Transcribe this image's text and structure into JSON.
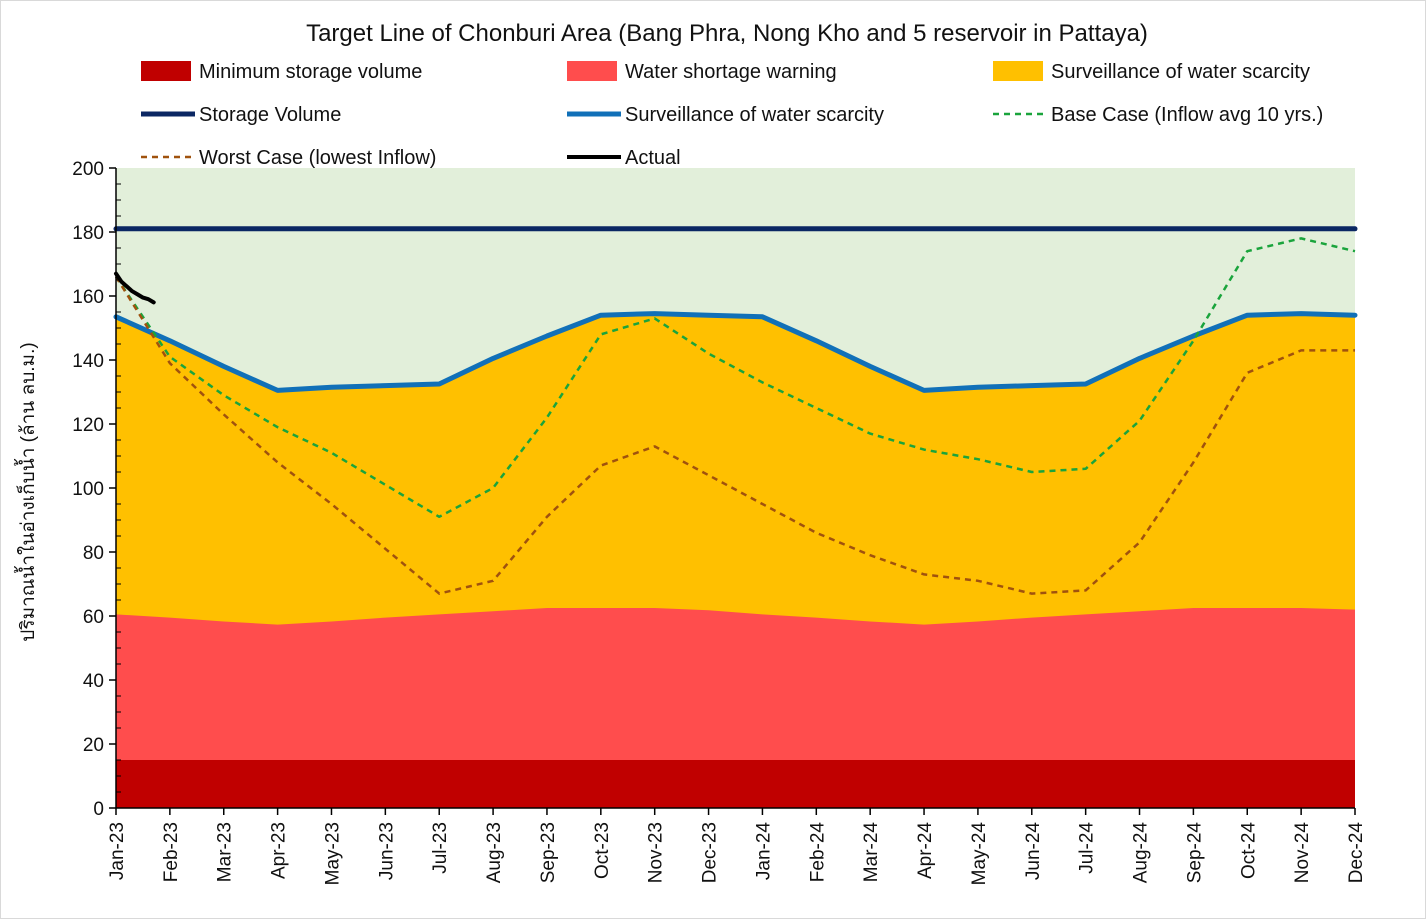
{
  "chart_data": {
    "type": "area",
    "title": "Target Line of Chonburi Area (Bang Phra, Nong Kho and 5 reservoir in Pattaya)",
    "xlabel": "",
    "ylabel": "ปริมาณน้ำในอ่างเก็บน้ำ (ล้าน ลบ.ม.)",
    "ylim": [
      0,
      200
    ],
    "yticks": [
      0,
      20,
      40,
      60,
      80,
      100,
      120,
      140,
      160,
      180,
      200
    ],
    "categories": [
      "Jan-23",
      "Feb-23",
      "Mar-23",
      "Apr-23",
      "May-23",
      "Jun-23",
      "Jul-23",
      "Aug-23",
      "Sep-23",
      "Oct-23",
      "Nov-23",
      "Dec-23",
      "Jan-24",
      "Feb-24",
      "Mar-24",
      "Apr-24",
      "May-24",
      "Jun-24",
      "Jul-24",
      "Aug-24",
      "Sep-24",
      "Oct-24",
      "Nov-24",
      "Dec-24"
    ],
    "background_color": "#e2efda",
    "legend": [
      {
        "name": "Minimum storage volume",
        "style": "area",
        "color": "#c00000"
      },
      {
        "name": "Water shortage warning",
        "style": "area",
        "color": "#ff4d4d"
      },
      {
        "name": "Surveillance of water scarcity",
        "style": "area",
        "color": "#ffc000"
      },
      {
        "name": "Storage Volume",
        "style": "line",
        "color": "#0b2763"
      },
      {
        "name": "Surveillance of water scarcity",
        "style": "line",
        "color": "#1170b8"
      },
      {
        "name": "Base Case (Inflow avg 10 yrs.)",
        "style": "dashed",
        "color": "#1aa43c"
      },
      {
        "name": "Worst Case (lowest Inflow)",
        "style": "dashed",
        "color": "#a0520e"
      },
      {
        "name": "Actual",
        "style": "line",
        "color": "#000000"
      }
    ],
    "series": [
      {
        "name": "Minimum storage volume",
        "kind": "area",
        "color": "#c00000",
        "values": [
          15,
          15,
          15,
          15,
          15,
          15,
          15,
          15,
          15,
          15,
          15,
          15,
          15,
          15,
          15,
          15,
          15,
          15,
          15,
          15,
          15,
          15,
          15,
          15
        ]
      },
      {
        "name": "Water shortage warning",
        "kind": "area",
        "color": "#ff4d4d",
        "values": [
          60.5,
          59.5,
          58.3,
          57.3,
          58.3,
          59.5,
          60.5,
          61.5,
          62.5,
          62.5,
          62.5,
          61.8,
          60.5,
          59.5,
          58.3,
          57.3,
          58.3,
          59.5,
          60.5,
          61.5,
          62.5,
          62.5,
          62.5,
          62
        ]
      },
      {
        "name": "Surveillance of water scarcity",
        "kind": "area",
        "color": "#ffc000",
        "values": [
          153.5,
          146,
          138,
          130.5,
          131.5,
          132,
          132.5,
          140.5,
          147.5,
          154,
          154.5,
          154,
          153.5,
          146,
          138,
          130.5,
          131.5,
          132,
          132.5,
          140.5,
          147.5,
          154,
          154.5,
          154
        ]
      },
      {
        "name": "Storage Volume",
        "kind": "line",
        "color": "#0b2763",
        "values": [
          181,
          181,
          181,
          181,
          181,
          181,
          181,
          181,
          181,
          181,
          181,
          181,
          181,
          181,
          181,
          181,
          181,
          181,
          181,
          181,
          181,
          181,
          181,
          181
        ]
      },
      {
        "name": "Surveillance of water scarcity",
        "kind": "line",
        "color": "#1170b8",
        "values": [
          153.5,
          146,
          138,
          130.5,
          131.5,
          132,
          132.5,
          140.5,
          147.5,
          154,
          154.5,
          154,
          153.5,
          146,
          138,
          130.5,
          131.5,
          132,
          132.5,
          140.5,
          147.5,
          154,
          154.5,
          154
        ]
      },
      {
        "name": "Base Case (Inflow avg 10 yrs.)",
        "kind": "dashed",
        "color": "#1aa43c",
        "values": [
          166,
          141,
          129,
          119,
          111,
          101,
          91,
          100,
          122,
          148,
          153,
          142,
          133,
          125,
          117,
          112,
          109,
          105,
          106,
          121,
          146,
          174,
          178,
          174
        ]
      },
      {
        "name": "Worst Case (lowest Inflow)",
        "kind": "dashed",
        "color": "#a0520e",
        "values": [
          166,
          139,
          123,
          108,
          95,
          81,
          67,
          71,
          91,
          107,
          113,
          104,
          95,
          86,
          79,
          73,
          71,
          67,
          68,
          83,
          108,
          136,
          143,
          143
        ]
      },
      {
        "name": "Actual",
        "kind": "line",
        "color": "#000000",
        "x": [
          0,
          0.1,
          0.2,
          0.3,
          0.4,
          0.5,
          0.6,
          0.7
        ],
        "values": [
          167,
          164.5,
          163,
          161.5,
          160.5,
          159.5,
          159,
          158
        ]
      }
    ]
  }
}
